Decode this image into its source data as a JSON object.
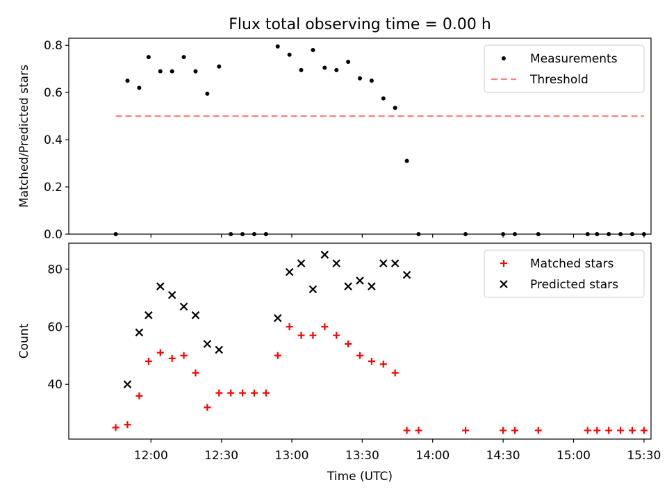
{
  "figure": {
    "title": "Flux total observing time = 0.00 h"
  },
  "chart_data": [
    {
      "type": "scatter",
      "panel": "top",
      "ylabel": "Matched/Predicted stars",
      "ylim": [
        0,
        0.83
      ],
      "yticks": [
        0.0,
        0.2,
        0.4,
        0.6,
        0.8
      ],
      "ytick_labels": [
        "0.0",
        "0.2",
        "0.4",
        "0.6",
        "0.8"
      ],
      "xlim_minutes": [
        685,
        933
      ],
      "legend_position": "top-right",
      "series": [
        {
          "name": "Measurements",
          "marker": "dot",
          "color": "#000000",
          "points": [
            [
              "11:45",
              0.0
            ],
            [
              "11:50",
              0.65
            ],
            [
              "11:55",
              0.62
            ],
            [
              "11:59",
              0.75
            ],
            [
              "12:04",
              0.69
            ],
            [
              "12:09",
              0.69
            ],
            [
              "12:14",
              0.75
            ],
            [
              "12:19",
              0.69
            ],
            [
              "12:24",
              0.595
            ],
            [
              "12:29",
              0.71
            ],
            [
              "12:34",
              0.0
            ],
            [
              "12:39",
              0.0
            ],
            [
              "12:44",
              0.0
            ],
            [
              "12:49",
              0.0
            ],
            [
              "12:54",
              0.795
            ],
            [
              "12:59",
              0.76
            ],
            [
              "13:04",
              0.695
            ],
            [
              "13:09",
              0.78
            ],
            [
              "13:14",
              0.705
            ],
            [
              "13:19",
              0.695
            ],
            [
              "13:24",
              0.73
            ],
            [
              "13:29",
              0.66
            ],
            [
              "13:34",
              0.65
            ],
            [
              "13:39",
              0.575
            ],
            [
              "13:44",
              0.535
            ],
            [
              "13:49",
              0.31
            ],
            [
              "13:54",
              0.0
            ],
            [
              "14:14",
              0.0
            ],
            [
              "14:30",
              0.0
            ],
            [
              "14:35",
              0.0
            ],
            [
              "14:45",
              0.0
            ],
            [
              "15:06",
              0.0
            ],
            [
              "15:10",
              0.0
            ],
            [
              "15:15",
              0.0
            ],
            [
              "15:20",
              0.0
            ],
            [
              "15:25",
              0.0
            ],
            [
              "15:30",
              0.0
            ]
          ]
        },
        {
          "name": "Threshold",
          "marker": "dashed-line",
          "color": "#ff8080",
          "points": [
            [
              "11:45",
              0.5
            ],
            [
              "15:30",
              0.5
            ]
          ]
        }
      ]
    },
    {
      "type": "scatter",
      "panel": "bottom",
      "xlabel": "Time (UTC)",
      "ylabel": "Count",
      "ylim": [
        21,
        89
      ],
      "yticks": [
        40,
        60,
        80
      ],
      "ytick_labels": [
        "40",
        "60",
        "80"
      ],
      "xlim_minutes": [
        685,
        933
      ],
      "xticks": [
        "12:00",
        "12:30",
        "13:00",
        "13:30",
        "14:00",
        "14:30",
        "15:00",
        "15:30"
      ],
      "legend_position": "top-right",
      "series": [
        {
          "name": "Matched stars",
          "marker": "plus",
          "color": "#ff0000",
          "points": [
            [
              "11:45",
              25
            ],
            [
              "11:50",
              26
            ],
            [
              "11:55",
              36
            ],
            [
              "11:59",
              48
            ],
            [
              "12:04",
              51
            ],
            [
              "12:09",
              49
            ],
            [
              "12:14",
              50
            ],
            [
              "12:19",
              44
            ],
            [
              "12:24",
              32
            ],
            [
              "12:29",
              37
            ],
            [
              "12:34",
              37
            ],
            [
              "12:39",
              37
            ],
            [
              "12:44",
              37
            ],
            [
              "12:49",
              37
            ],
            [
              "12:54",
              50
            ],
            [
              "12:59",
              60
            ],
            [
              "13:04",
              57
            ],
            [
              "13:09",
              57
            ],
            [
              "13:14",
              60
            ],
            [
              "13:19",
              57
            ],
            [
              "13:24",
              54
            ],
            [
              "13:29",
              50
            ],
            [
              "13:34",
              48
            ],
            [
              "13:39",
              47
            ],
            [
              "13:44",
              44
            ],
            [
              "13:49",
              24
            ],
            [
              "13:54",
              24
            ],
            [
              "14:14",
              24
            ],
            [
              "14:30",
              24
            ],
            [
              "14:35",
              24
            ],
            [
              "14:45",
              24
            ],
            [
              "15:06",
              24
            ],
            [
              "15:10",
              24
            ],
            [
              "15:15",
              24
            ],
            [
              "15:20",
              24
            ],
            [
              "15:25",
              24
            ],
            [
              "15:30",
              24
            ]
          ]
        },
        {
          "name": "Predicted stars",
          "marker": "x",
          "color": "#000000",
          "points": [
            [
              "11:50",
              40
            ],
            [
              "11:55",
              58
            ],
            [
              "11:59",
              64
            ],
            [
              "12:04",
              74
            ],
            [
              "12:09",
              71
            ],
            [
              "12:14",
              67
            ],
            [
              "12:19",
              64
            ],
            [
              "12:24",
              54
            ],
            [
              "12:29",
              52
            ],
            [
              "12:54",
              63
            ],
            [
              "12:59",
              79
            ],
            [
              "13:04",
              82
            ],
            [
              "13:09",
              73
            ],
            [
              "13:14",
              85
            ],
            [
              "13:19",
              82
            ],
            [
              "13:24",
              74
            ],
            [
              "13:29",
              76
            ],
            [
              "13:34",
              74
            ],
            [
              "13:39",
              82
            ],
            [
              "13:44",
              82
            ],
            [
              "13:49",
              78
            ]
          ]
        }
      ]
    }
  ]
}
